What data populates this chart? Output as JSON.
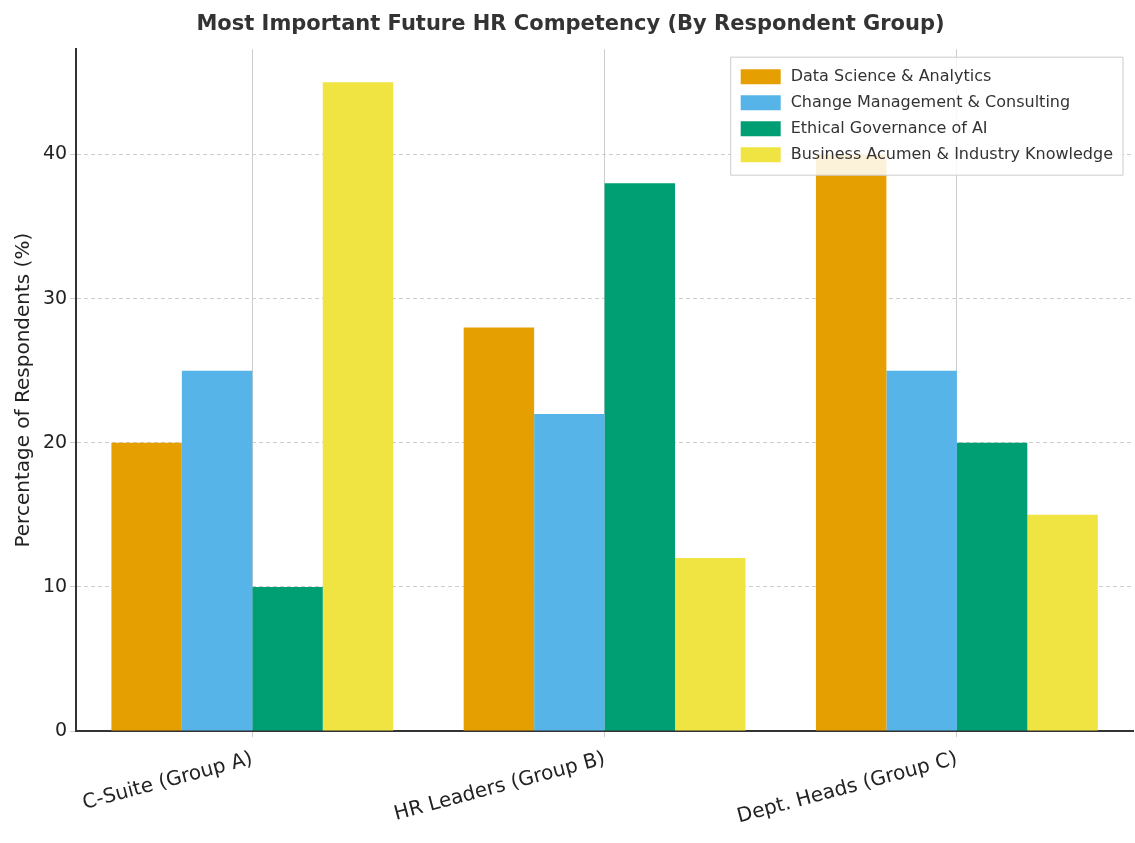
{
  "chart_data": {
    "type": "bar",
    "title": "Most Important Future HR Competency (By Respondent Group)",
    "ylabel": "Percentage of Respondents (%)",
    "categories": [
      "C-Suite (Group A)",
      "HR Leaders (Group B)",
      "Dept. Heads (Group C)"
    ],
    "series": [
      {
        "name": "Data Science & Analytics",
        "color": "#e69f00",
        "values": [
          20,
          28,
          40
        ]
      },
      {
        "name": "Change Management & Consulting",
        "color": "#56b4e9",
        "values": [
          25,
          22,
          25
        ]
      },
      {
        "name": "Ethical Governance of AI",
        "color": "#009e73",
        "values": [
          10,
          38,
          20
        ]
      },
      {
        "name": "Business Acumen & Industry Knowledge",
        "color": "#f0e442",
        "values": [
          45,
          12,
          15
        ]
      }
    ],
    "ylim": [
      0,
      47.3
    ],
    "yticks": [
      0,
      10,
      20,
      30,
      40
    ],
    "grid": true,
    "legend": "top right"
  }
}
